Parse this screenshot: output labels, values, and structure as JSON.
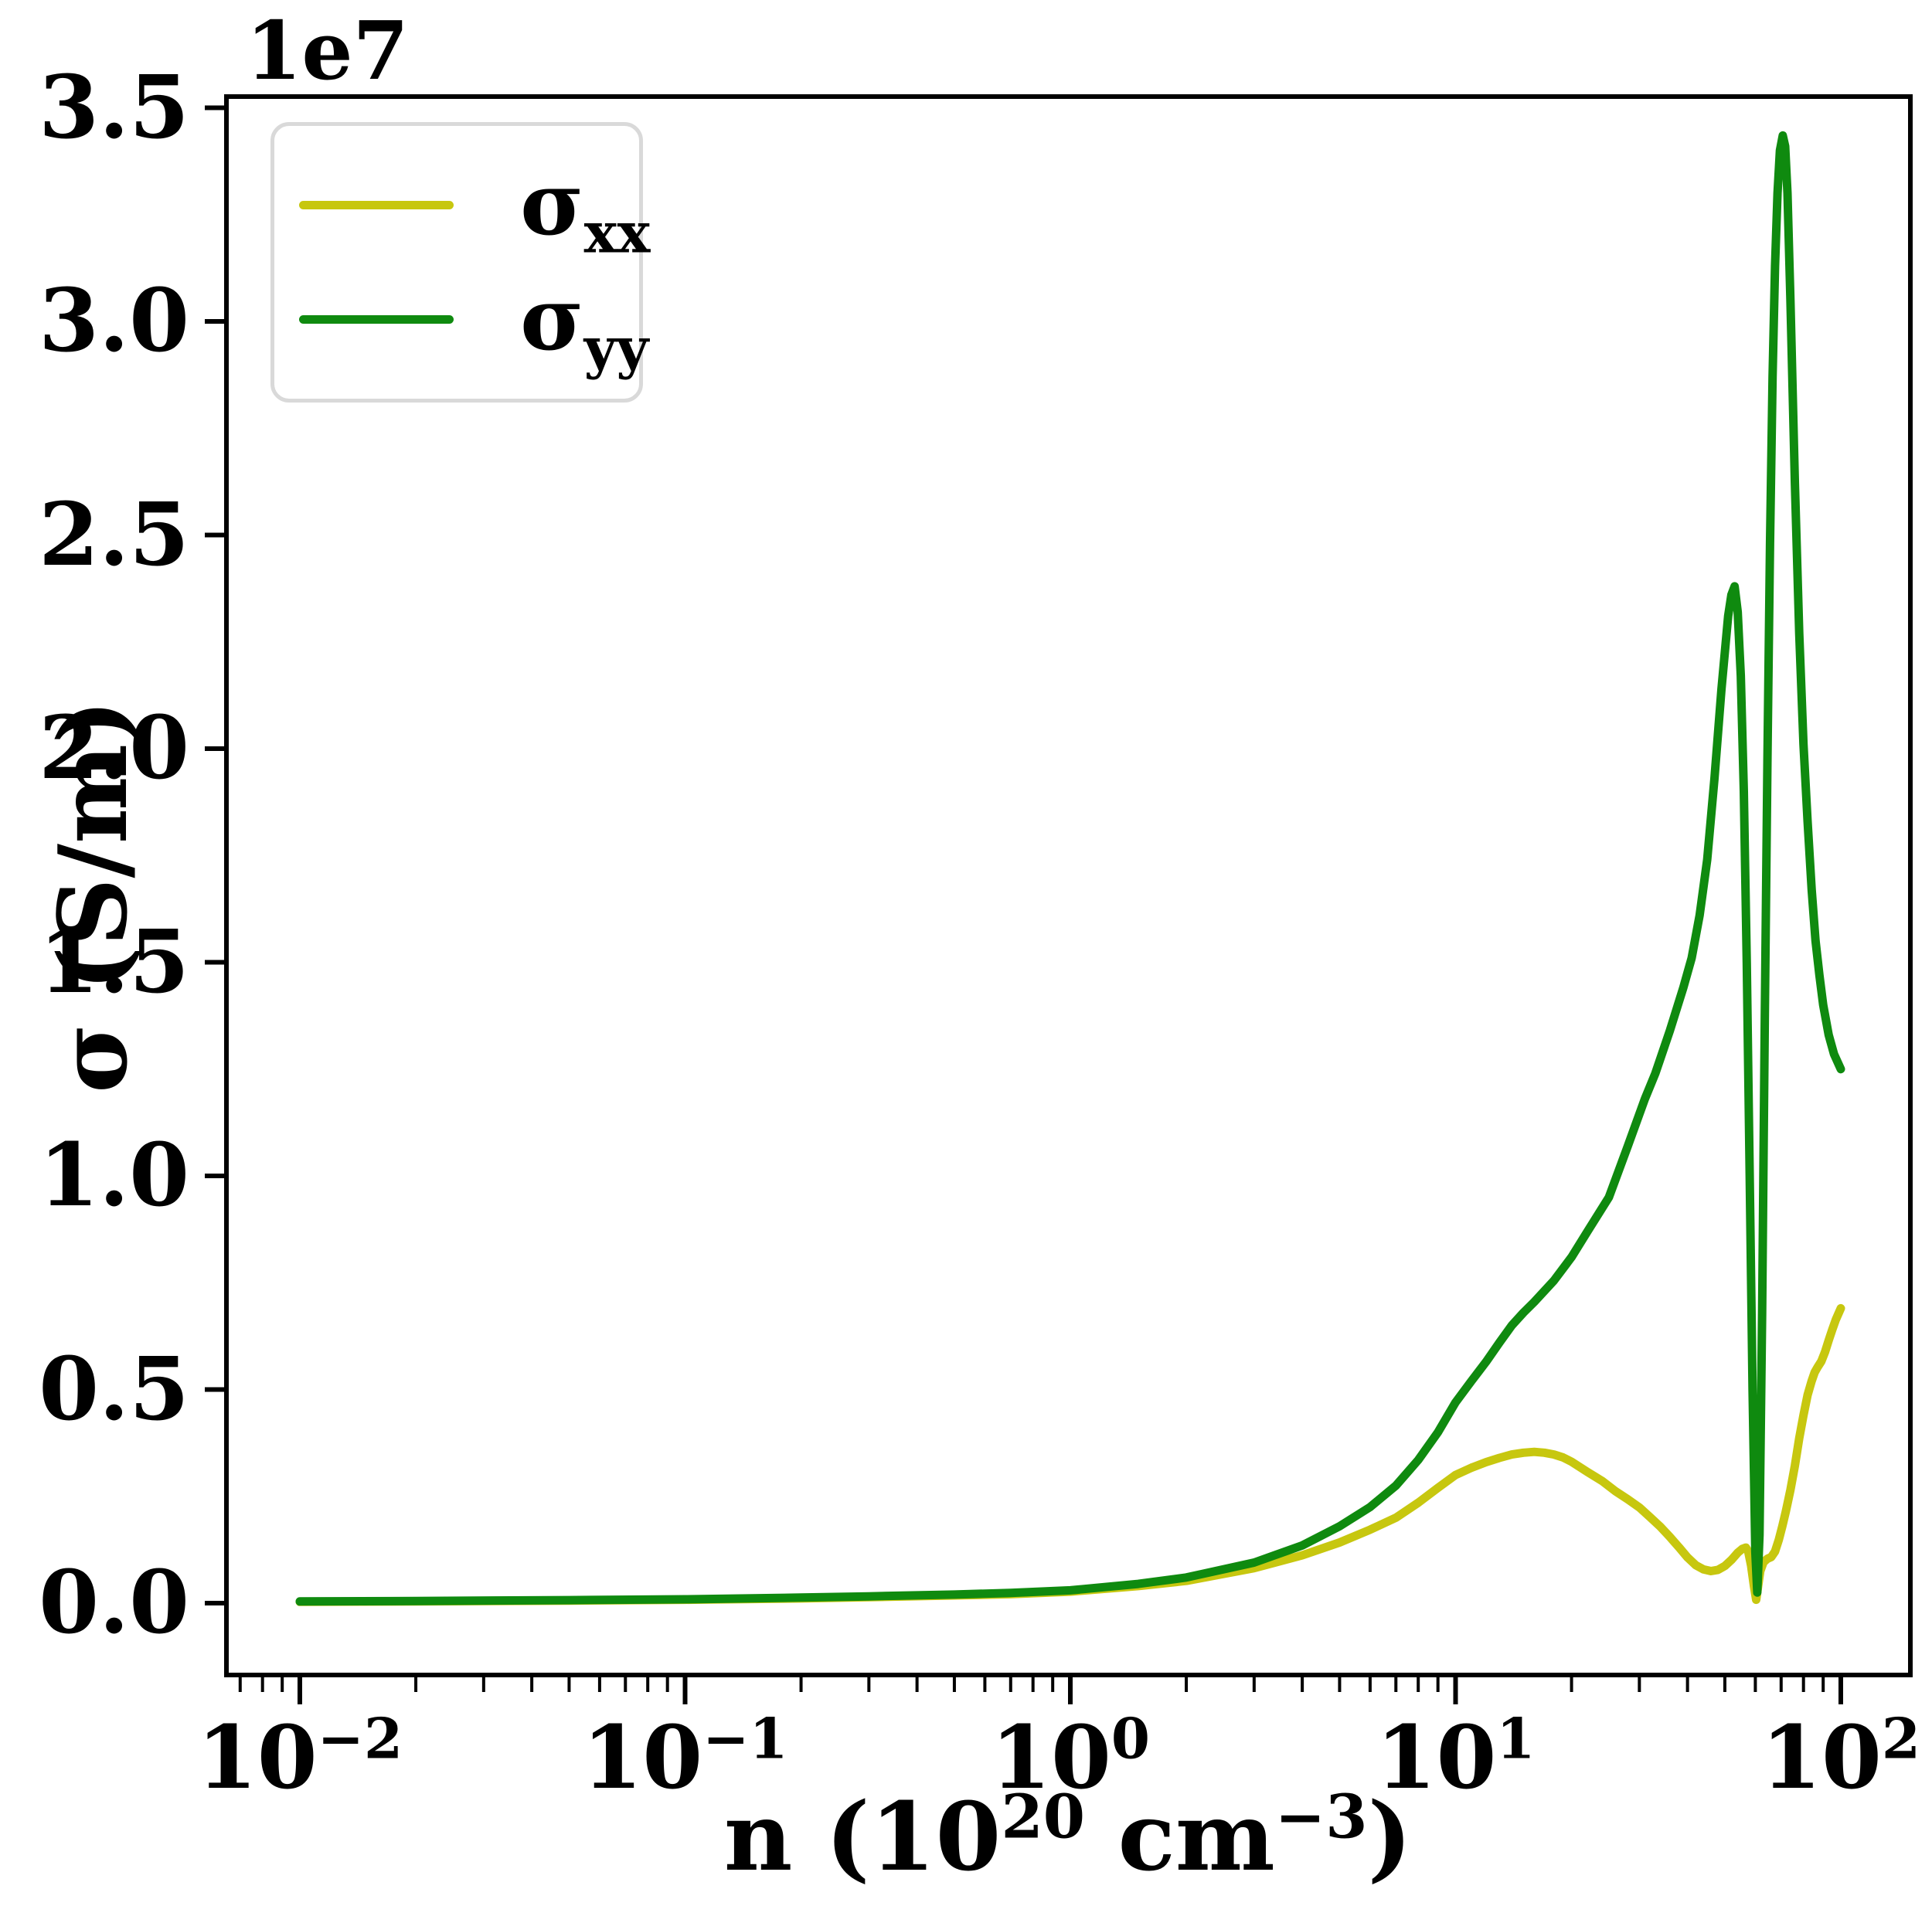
{
  "figure": {
    "offset_label_base": "1e7",
    "background_color": "#ffffff",
    "spine_color": "#000000"
  },
  "axes": {
    "ylabel": "σ (S/m)",
    "xlabel_p1": "n (10",
    "xlabel_e1": "20",
    "xlabel_p2": " cm",
    "xlabel_e2": "−3",
    "xlabel_p3": ")",
    "y_ticks": [
      "0.0",
      "0.5",
      "1.0",
      "1.5",
      "2.0",
      "2.5",
      "3.0",
      "3.5"
    ],
    "x_ticks": [
      {
        "base": "10",
        "exp": "−2"
      },
      {
        "base": "10",
        "exp": "−1"
      },
      {
        "base": "10",
        "exp": "0"
      },
      {
        "base": "10",
        "exp": "1"
      },
      {
        "base": "10",
        "exp": "2"
      }
    ]
  },
  "legend": {
    "entries": [
      {
        "sigma": "σ",
        "sub": "xx",
        "color": "#c7c70f"
      },
      {
        "sigma": "σ",
        "sub": "yy",
        "color": "#0f8a0f"
      }
    ]
  },
  "chart_data": {
    "type": "line",
    "title": "",
    "xlabel": "n (10^20 cm^-3)",
    "ylabel": "σ (S/m)",
    "x_scale": "log",
    "y_offset_multiplier": "1e7",
    "xlim": [
      0.0065,
      150
    ],
    "ylim_1e7": [
      -0.168,
      3.53
    ],
    "x_major_ticks": [
      0.01,
      0.1,
      1,
      10,
      100
    ],
    "y_ticks_1e7": [
      0.0,
      0.5,
      1.0,
      1.5,
      2.0,
      2.5,
      3.0,
      3.5
    ],
    "grid": false,
    "legend_position": "upper left",
    "series": [
      {
        "name": "sigma_xx",
        "color": "#c7c70f",
        "points_n_vs_sigma_1e7": [
          [
            0.01,
            0.003
          ],
          [
            0.02,
            0.004
          ],
          [
            0.05,
            0.006
          ],
          [
            0.1,
            0.008
          ],
          [
            0.2,
            0.011
          ],
          [
            0.3,
            0.014
          ],
          [
            0.5,
            0.018
          ],
          [
            0.7,
            0.021
          ],
          [
            1,
            0.027
          ],
          [
            1.5,
            0.04
          ],
          [
            2,
            0.052
          ],
          [
            3,
            0.082
          ],
          [
            4,
            0.112
          ],
          [
            5,
            0.142
          ],
          [
            6,
            0.172
          ],
          [
            7,
            0.2
          ],
          [
            8,
            0.235
          ],
          [
            9,
            0.27
          ],
          [
            10,
            0.3
          ],
          [
            11,
            0.317
          ],
          [
            12,
            0.33
          ],
          [
            13,
            0.34
          ],
          [
            14,
            0.348
          ],
          [
            15,
            0.352
          ],
          [
            16,
            0.354
          ],
          [
            17,
            0.352
          ],
          [
            18,
            0.348
          ],
          [
            19,
            0.341
          ],
          [
            20,
            0.331
          ],
          [
            22,
            0.307
          ],
          [
            24,
            0.286
          ],
          [
            26,
            0.262
          ],
          [
            28,
            0.243
          ],
          [
            30,
            0.224
          ],
          [
            32,
            0.201
          ],
          [
            34,
            0.179
          ],
          [
            36,
            0.155
          ],
          [
            38,
            0.131
          ],
          [
            40,
            0.107
          ],
          [
            42,
            0.089
          ],
          [
            44,
            0.079
          ],
          [
            46,
            0.075
          ],
          [
            48,
            0.078
          ],
          [
            50,
            0.087
          ],
          [
            52,
            0.101
          ],
          [
            54,
            0.118
          ],
          [
            55.5,
            0.127
          ],
          [
            56.7,
            0.13
          ],
          [
            57.5,
            0.121
          ],
          [
            58.5,
            0.088
          ],
          [
            59.5,
            0.04
          ],
          [
            60.3,
            0.008
          ],
          [
            61,
            0.04
          ],
          [
            61.8,
            0.075
          ],
          [
            63,
            0.096
          ],
          [
            64.5,
            0.104
          ],
          [
            66,
            0.108
          ],
          [
            67.5,
            0.121
          ],
          [
            69,
            0.148
          ],
          [
            70.5,
            0.18
          ],
          [
            72,
            0.215
          ],
          [
            74,
            0.265
          ],
          [
            76,
            0.322
          ],
          [
            78,
            0.386
          ],
          [
            80,
            0.44
          ],
          [
            82,
            0.487
          ],
          [
            84,
            0.52
          ],
          [
            85.5,
            0.54
          ],
          [
            87,
            0.552
          ],
          [
            89,
            0.566
          ],
          [
            91,
            0.588
          ],
          [
            93,
            0.615
          ],
          [
            95,
            0.64
          ],
          [
            97,
            0.663
          ],
          [
            100,
            0.69
          ]
        ]
      },
      {
        "name": "sigma_yy",
        "color": "#0f8a0f",
        "points_n_vs_sigma_1e7": [
          [
            0.01,
            0.004
          ],
          [
            0.02,
            0.005
          ],
          [
            0.05,
            0.007
          ],
          [
            0.1,
            0.009
          ],
          [
            0.2,
            0.013
          ],
          [
            0.3,
            0.016
          ],
          [
            0.5,
            0.02
          ],
          [
            0.7,
            0.024
          ],
          [
            1,
            0.03
          ],
          [
            1.5,
            0.045
          ],
          [
            2,
            0.06
          ],
          [
            3,
            0.095
          ],
          [
            4,
            0.135
          ],
          [
            5,
            0.18
          ],
          [
            6,
            0.225
          ],
          [
            7,
            0.275
          ],
          [
            8,
            0.335
          ],
          [
            9,
            0.4
          ],
          [
            10,
            0.47
          ],
          [
            11,
            0.52
          ],
          [
            12,
            0.565
          ],
          [
            13,
            0.61
          ],
          [
            14,
            0.65
          ],
          [
            15,
            0.68
          ],
          [
            16,
            0.705
          ],
          [
            18,
            0.755
          ],
          [
            20,
            0.81
          ],
          [
            22,
            0.87
          ],
          [
            25,
            0.95
          ],
          [
            28,
            1.07
          ],
          [
            31,
            1.18
          ],
          [
            33,
            1.24
          ],
          [
            36,
            1.34
          ],
          [
            39,
            1.44
          ],
          [
            41,
            1.51
          ],
          [
            43,
            1.61
          ],
          [
            45,
            1.74
          ],
          [
            47,
            1.93
          ],
          [
            49,
            2.14
          ],
          [
            51,
            2.31
          ],
          [
            52,
            2.36
          ],
          [
            53,
            2.38
          ],
          [
            54,
            2.32
          ],
          [
            55,
            2.17
          ],
          [
            56,
            1.9
          ],
          [
            57,
            1.5
          ],
          [
            58,
            1.0
          ],
          [
            59,
            0.5
          ],
          [
            60,
            0.12
          ],
          [
            60.7,
            0.025
          ],
          [
            61.5,
            0.16
          ],
          [
            62.5,
            0.68
          ],
          [
            63.5,
            1.38
          ],
          [
            64.5,
            1.98
          ],
          [
            65.5,
            2.48
          ],
          [
            66.5,
            2.87
          ],
          [
            67.5,
            3.13
          ],
          [
            68.5,
            3.3
          ],
          [
            69.5,
            3.4
          ],
          [
            70.7,
            3.435
          ],
          [
            71.7,
            3.41
          ],
          [
            72.7,
            3.3
          ],
          [
            74,
            3.05
          ],
          [
            76,
            2.62
          ],
          [
            78,
            2.27
          ],
          [
            80,
            2.01
          ],
          [
            82,
            1.83
          ],
          [
            84,
            1.67
          ],
          [
            86,
            1.55
          ],
          [
            88,
            1.47
          ],
          [
            90,
            1.4
          ],
          [
            93,
            1.33
          ],
          [
            96,
            1.285
          ],
          [
            100,
            1.25
          ]
        ]
      }
    ]
  }
}
